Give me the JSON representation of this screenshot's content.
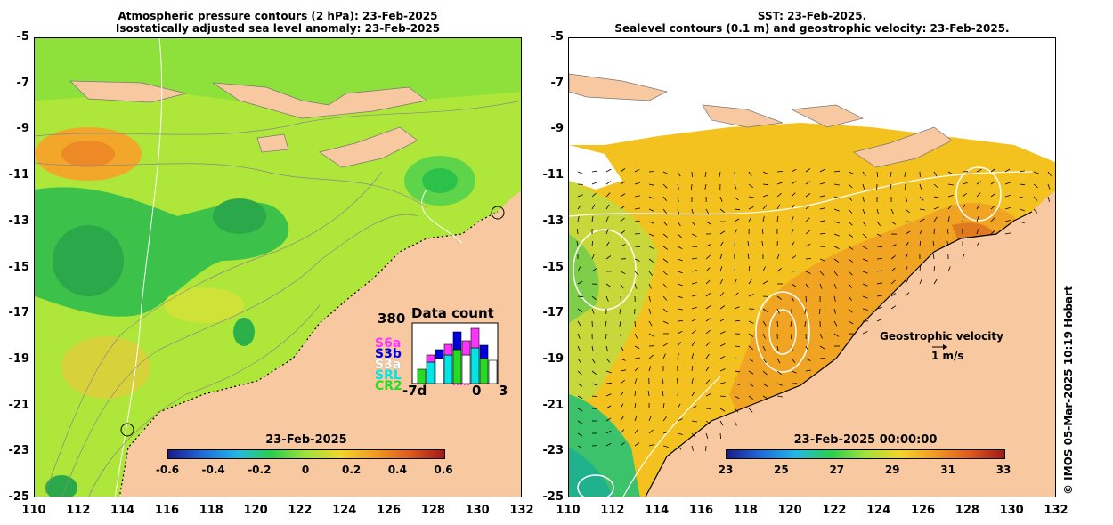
{
  "left_panel": {
    "title_line1": "Atmospheric pressure contours (2 hPa): 23-Feb-2025",
    "title_line2": "Isostatically adjusted sea level anomaly: 23-Feb-2025",
    "y_ticks": [
      "-5",
      "-7",
      "-9",
      "-11",
      "-13",
      "-15",
      "-17",
      "-19",
      "-21",
      "-23",
      "-25"
    ],
    "x_ticks": [
      "110",
      "112",
      "114",
      "116",
      "118",
      "120",
      "122",
      "124",
      "126",
      "128",
      "130",
      "132"
    ],
    "colorbar": {
      "title": "23-Feb-2025",
      "ticks": [
        "-0.6",
        "-0.4",
        "-0.2",
        "0",
        "0.2",
        "0.4",
        "0.6"
      ]
    },
    "data_count": {
      "title": "Data count",
      "max_label": "380",
      "x_left": "-7d",
      "x_mid": "0",
      "x_right": "3",
      "satellites": [
        {
          "name": "S6a",
          "color": "#ff33ff"
        },
        {
          "name": "S3b",
          "color": "#0000dd"
        },
        {
          "name": "S3a",
          "color": "#ffffff"
        },
        {
          "name": "SRL",
          "color": "#00e5e5"
        },
        {
          "name": "CR2",
          "color": "#22dd22"
        }
      ]
    }
  },
  "right_panel": {
    "title_line1": "SST: 23-Feb-2025.",
    "title_line2": "Sealevel contours (0.1 m) and geostrophic velocity: 23-Feb-2025.",
    "y_ticks": [
      "-5",
      "-7",
      "-9",
      "-11",
      "-13",
      "-15",
      "-17",
      "-19",
      "-21",
      "-23",
      "-25"
    ],
    "x_ticks": [
      "110",
      "112",
      "114",
      "116",
      "118",
      "120",
      "122",
      "124",
      "126",
      "128",
      "130",
      "132"
    ],
    "colorbar": {
      "title": "23-Feb-2025 00:00:00",
      "ticks": [
        "23",
        "25",
        "27",
        "29",
        "31",
        "33"
      ]
    },
    "velocity_legend": {
      "label": "Geostrophic velocity",
      "scale": "1 m/s"
    }
  },
  "copyright": "© IMOS 05-Mar-2025 10:19 Hobart",
  "colors": {
    "land": "#f8c9a0",
    "sst_warm": "#f29a22",
    "sst_mid": "#f4c21e",
    "ssla_mid": "#b4e83c"
  }
}
